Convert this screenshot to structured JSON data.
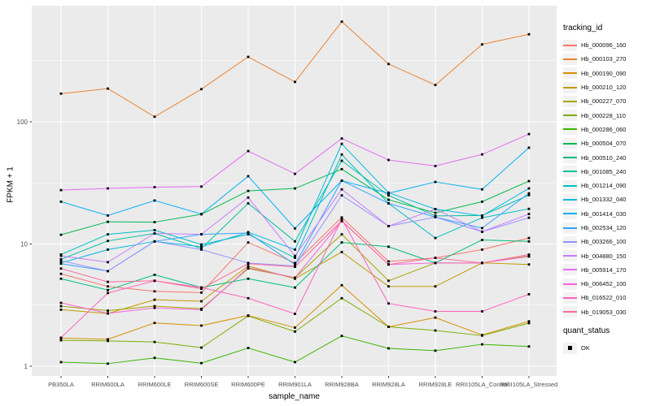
{
  "chart_data": {
    "type": "line",
    "title": "",
    "xlabel": "sample_name",
    "ylabel": "FPKM + 1",
    "yscale": "log10",
    "ytick_labels": [
      "100",
      "10",
      "1"
    ],
    "ytick_values": [
      100,
      10,
      1
    ],
    "yminor_values": [
      3.1623,
      31.623,
      316.23
    ],
    "ylim": [
      1,
      900
    ],
    "grid": true,
    "legend_position": "right",
    "panel_bg": "#EBEBEB",
    "grid_color": "#FFFFFF",
    "axis_text_color": "#4D4D4D",
    "tick_color": "#333333",
    "point_shape": "square",
    "point_color": "#000000",
    "categories": [
      "PB350LA",
      "RRIM600LA",
      "RRIM600LE",
      "RRIM600SE",
      "RRIM600PE",
      "RRIM901LA",
      "RRIM928BA",
      "RRIM928LA",
      "RRIM928LE",
      "RRII105LA_Control",
      "RRII105LA_Stressed"
    ],
    "series": [
      {
        "name": "Hb_000096_160",
        "color": "#F8766D",
        "values": [
          5.7,
          4.5,
          4.1,
          4.0,
          10.3,
          7.0,
          16.5,
          7.2,
          7.7,
          9.0,
          11.2
        ]
      },
      {
        "name": "Hb_000103_270",
        "color": "#EA8331",
        "values": [
          170,
          187,
          110,
          185,
          340,
          212,
          660,
          297,
          200,
          430,
          520
        ]
      },
      {
        "name": "Hb_000190_090",
        "color": "#D89000",
        "values": [
          1.7,
          1.66,
          2.26,
          2.15,
          2.6,
          2.07,
          4.6,
          2.1,
          2.5,
          1.8,
          2.33
        ]
      },
      {
        "name": "Hb_000210_120",
        "color": "#C09B00",
        "values": [
          2.9,
          2.7,
          3.5,
          3.4,
          6.6,
          5.2,
          8.6,
          4.5,
          4.5,
          7.0,
          6.8
        ]
      },
      {
        "name": "Hb_000227_070",
        "color": "#A3A500",
        "values": [
          3.1,
          2.85,
          3.1,
          2.95,
          6.3,
          5.3,
          12.0,
          5.0,
          7.0,
          7.0,
          8.0
        ]
      },
      {
        "name": "Hb_000228_110",
        "color": "#7CAE00",
        "values": [
          1.63,
          1.61,
          1.58,
          1.42,
          2.58,
          1.92,
          3.6,
          2.1,
          1.96,
          1.78,
          2.25
        ]
      },
      {
        "name": "Hb_000286_060",
        "color": "#39B600",
        "values": [
          1.08,
          1.05,
          1.17,
          1.06,
          1.41,
          1.08,
          1.77,
          1.4,
          1.34,
          1.51,
          1.45
        ]
      },
      {
        "name": "Hb_000504_070",
        "color": "#00BB4E",
        "values": [
          11.9,
          15.2,
          15.1,
          17.5,
          27.2,
          28.5,
          41.0,
          23.0,
          18.0,
          22.2,
          32.7
        ]
      },
      {
        "name": "Hb_000510_240",
        "color": "#00BF7D",
        "values": [
          5.2,
          4.2,
          5.6,
          4.4,
          5.2,
          4.4,
          10.3,
          9.5,
          7.0,
          10.8,
          10.5
        ]
      },
      {
        "name": "Hb_001085_240",
        "color": "#00C1A3",
        "values": [
          7.5,
          10.6,
          12.2,
          9.2,
          21.5,
          10.5,
          48.0,
          25.0,
          17.0,
          17.1,
          25.1
        ]
      },
      {
        "name": "Hb_001214_090",
        "color": "#00BFC4",
        "values": [
          8.2,
          12.0,
          13.0,
          9.9,
          12.0,
          7.7,
          54.0,
          21.5,
          11.2,
          16.4,
          19.4
        ]
      },
      {
        "name": "Hb_001332_040",
        "color": "#00BAE0",
        "values": [
          7.0,
          9.0,
          10.5,
          9.5,
          12.5,
          9.0,
          66.0,
          26.3,
          19.3,
          17.0,
          28.5
        ]
      },
      {
        "name": "Hb_001414_030",
        "color": "#00B0F6",
        "values": [
          22.2,
          17.1,
          22.7,
          17.6,
          35.9,
          13.4,
          33.0,
          26.0,
          32.2,
          28.0,
          61.4
        ]
      },
      {
        "name": "Hb_002534_120",
        "color": "#35A2FF",
        "values": [
          6.9,
          6.0,
          10.5,
          12.0,
          12.3,
          6.8,
          33.0,
          21.5,
          16.6,
          13.5,
          26.0
        ]
      },
      {
        "name": "Hb_003266_100",
        "color": "#9590FF",
        "values": [
          7.3,
          6.0,
          10.5,
          9.0,
          7.0,
          6.6,
          25.0,
          14.0,
          16.6,
          12.6,
          16.4
        ]
      },
      {
        "name": "Hb_004880_150",
        "color": "#C77CFF",
        "values": [
          8.0,
          7.1,
          12.2,
          12.0,
          24.0,
          8.0,
          28.0,
          14.0,
          19.3,
          12.6,
          17.6
        ]
      },
      {
        "name": "Hb_005914_170",
        "color": "#E76BF3",
        "values": [
          27.6,
          28.5,
          29.2,
          29.5,
          57.6,
          37.5,
          73.0,
          48.7,
          43.5,
          54.1,
          79.4
        ]
      },
      {
        "name": "Hb_006452_100",
        "color": "#FA62DB",
        "values": [
          3.3,
          2.71,
          3.0,
          2.9,
          6.4,
          5.3,
          15.4,
          6.8,
          7.0,
          7.0,
          7.9
        ]
      },
      {
        "name": "Hb_016522_010",
        "color": "#FF62BC",
        "values": [
          1.71,
          3.97,
          5.0,
          4.4,
          3.6,
          2.68,
          16.0,
          3.26,
          2.81,
          2.81,
          3.88
        ]
      },
      {
        "name": "Hb_019053_030",
        "color": "#FF6A98",
        "values": [
          6.3,
          4.9,
          5.0,
          4.3,
          6.9,
          6.5,
          15.5,
          6.8,
          7.7,
          7.0,
          8.2
        ]
      }
    ]
  },
  "legend": {
    "tracking_title": "tracking_id",
    "quant_title": "quant_status",
    "quant_items": [
      {
        "label": "OK"
      }
    ]
  }
}
